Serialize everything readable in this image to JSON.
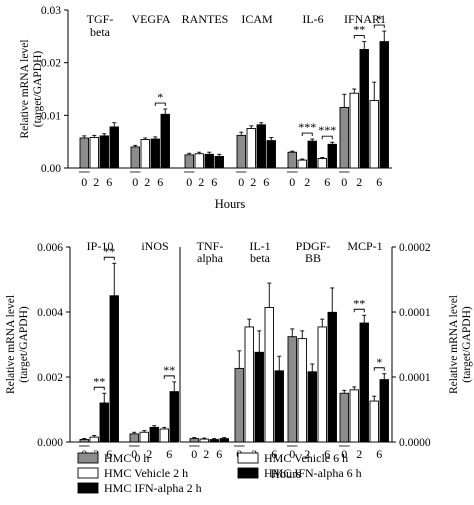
{
  "chart_data": [
    {
      "type": "bar",
      "panel": "top",
      "xlabel": "Hours",
      "ylabel": [
        "Relative mRNA level",
        "(target/GAPDH)"
      ],
      "ylim": [
        0,
        0.03
      ],
      "yticks": [
        "0.00",
        "0.01",
        "0.02",
        "0.03"
      ],
      "ytick_values": [
        0,
        0.01,
        0.02,
        0.03
      ],
      "x_ticks": [
        "0",
        "2",
        "6"
      ],
      "legend": "bottom",
      "groups": [
        {
          "label": [
            "TGF-",
            "beta"
          ],
          "values": [
            0.0057,
            0.0058,
            0.0061,
            0.0078
          ],
          "errors": [
            0.0004,
            0.0004,
            0.0004,
            0.0008
          ],
          "sig": []
        },
        {
          "label": [
            "VEGFA"
          ],
          "values": [
            0.004,
            0.0054,
            0.0055,
            0.0102
          ],
          "errors": [
            0.0003,
            0.0003,
            0.0004,
            0.001
          ],
          "sig": [
            {
              "from": 2,
              "to": 3,
              "text": "*"
            }
          ]
        },
        {
          "label": [
            "RANTES"
          ],
          "values": [
            0.0025,
            0.0027,
            0.0026,
            0.0022
          ],
          "errors": [
            0.0003,
            0.0003,
            0.0004,
            0.0004
          ],
          "sig": []
        },
        {
          "label": [
            "ICAM"
          ],
          "values": [
            0.0062,
            0.0075,
            0.0082,
            0.0052
          ],
          "errors": [
            0.0006,
            0.0005,
            0.0004,
            0.0006
          ],
          "sig": []
        },
        {
          "label": [
            "IL-6"
          ],
          "values": [
            0.003,
            0.0015,
            0.0051,
            0.0018,
            0.0045
          ],
          "errors": [
            0.0002,
            0.0002,
            0.0004,
            0.0002,
            0.0004
          ],
          "sig": [
            {
              "from": 1,
              "to": 2,
              "text": "***"
            },
            {
              "from": 3,
              "to": 4,
              "text": "***"
            }
          ]
        },
        {
          "label": [
            "IFNAR1"
          ],
          "values": [
            0.0115,
            0.0142,
            0.0225,
            0.0128,
            0.024
          ],
          "errors": [
            0.0025,
            0.0008,
            0.0015,
            0.0035,
            0.002
          ],
          "sig": [
            {
              "from": 1,
              "to": 2,
              "text": "**"
            },
            {
              "from": 3,
              "to": 4,
              "text": "*"
            }
          ]
        }
      ]
    },
    {
      "type": "bar",
      "panel": "bottom-left",
      "xlabel": "Hours",
      "ylabel": [
        "Relative mRNA level",
        "(target/GAPDH)"
      ],
      "ylim": [
        0,
        0.006
      ],
      "yticks": [
        "0.000",
        "0.002",
        "0.004",
        "0.006"
      ],
      "ytick_values": [
        0,
        0.002,
        0.004,
        0.006
      ],
      "x_ticks": [
        "0",
        "2",
        "6"
      ],
      "groups": [
        {
          "label": [
            "IP-10"
          ],
          "values": [
            8e-05,
            0.00015,
            0.0012,
            0.0045
          ],
          "errors": [
            3e-05,
            5e-05,
            0.0003,
            0.001
          ],
          "sig": [
            {
              "from": 1,
              "to": 2,
              "text": "**"
            },
            {
              "from": 2,
              "to": 3,
              "text": "**"
            }
          ]
        },
        {
          "label": [
            "iNOS"
          ],
          "values": [
            0.00025,
            0.0003,
            0.00045,
            0.0004,
            0.00155
          ],
          "errors": [
            5e-05,
            5e-05,
            5e-05,
            5e-05,
            0.0003
          ],
          "sig": [
            {
              "from": 3,
              "to": 4,
              "text": "**"
            }
          ]
        }
      ]
    },
    {
      "type": "bar",
      "panel": "bottom-right",
      "xlabel": "Hours",
      "ylabel": [
        "Relative mRNA level",
        "(target/GAPDH)"
      ],
      "ylim": [
        0,
        0.0002
      ],
      "yticks": [
        "0.0000",
        "0.0001",
        "0.0001",
        "0.0002"
      ],
      "ytick_values": [
        0,
        6.67e-05,
        0.0001333,
        0.0002
      ],
      "x_ticks": [
        "0",
        "2",
        "6"
      ],
      "groups": [
        {
          "label": [
            "TNF-",
            "alpha"
          ],
          "values": [
            3.5e-06,
            3e-06,
            2.5e-06,
            3.5e-06
          ],
          "errors": [
            1e-06,
            1e-06,
            1e-06,
            1e-06
          ],
          "sig": []
        },
        {
          "label": [
            "IL-1",
            "beta"
          ],
          "values": [
            7.55e-05,
            0.000118,
            9.2e-05,
            0.000138,
            7.3e-05
          ],
          "errors": [
            1.8e-05,
            8e-06,
            2.2e-05,
            2.5e-05,
            1.5e-05
          ],
          "sig": []
        },
        {
          "label": [
            "PDGF-",
            "BB"
          ],
          "values": [
            0.000108,
            0.000106,
            7.2e-05,
            0.000118,
            0.000133
          ],
          "errors": [
            8e-06,
            8e-06,
            8e-06,
            8e-06,
            2.5e-05
          ],
          "sig": []
        },
        {
          "label": [
            "MCP-1"
          ],
          "values": [
            5e-05,
            5.35e-05,
            0.000122,
            4.2e-05,
            6.4e-05
          ],
          "errors": [
            3e-06,
            3e-06,
            8e-06,
            5e-06,
            6e-06
          ],
          "sig": [
            {
              "from": 1,
              "to": 2,
              "text": "**"
            },
            {
              "from": 3,
              "to": 4,
              "text": "*"
            }
          ]
        }
      ]
    }
  ],
  "legend": [
    {
      "label": "HMC 0 h",
      "color": "#8c8c8c"
    },
    {
      "label": "HMC Vehicle 2 h",
      "color": "#ffffff"
    },
    {
      "label": "HMC IFN-alpha 2 h",
      "color": "#000000"
    },
    {
      "label": "HMC Vehicle 6 h",
      "color": "#ffffff"
    },
    {
      "label": "HMC IFN-alpha 6 h",
      "color": "#000000"
    }
  ]
}
